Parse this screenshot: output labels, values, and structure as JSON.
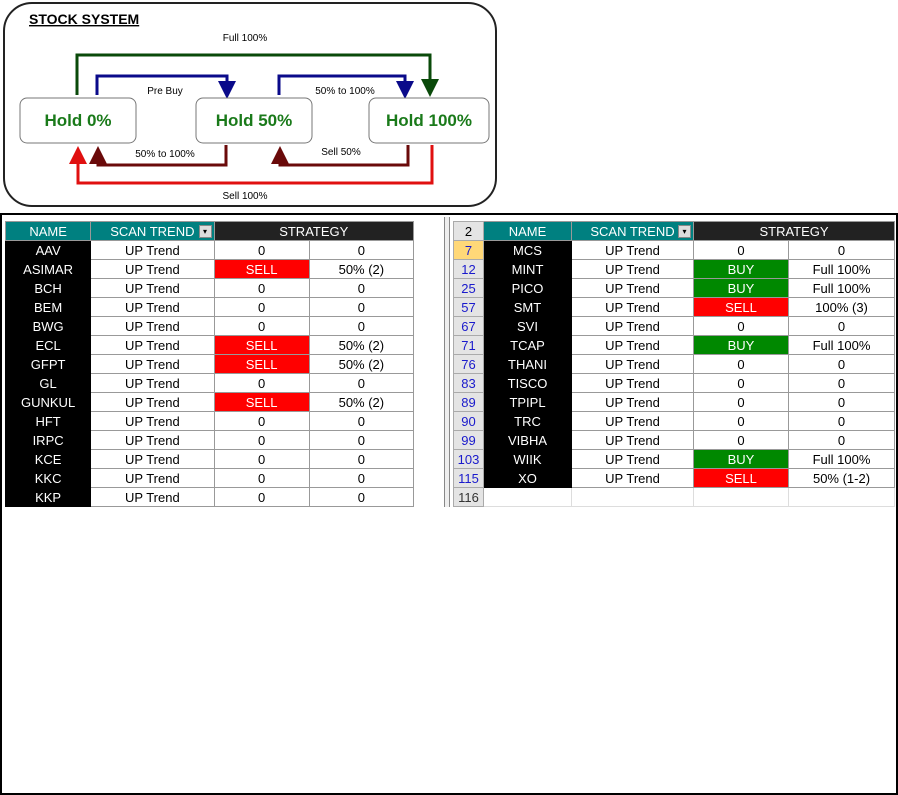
{
  "diagram": {
    "title": "STOCK SYSTEM",
    "states": [
      "Hold 0%",
      "Hold 50%",
      "Hold 100%"
    ],
    "arrows": {
      "full": "Full 100%",
      "pre_buy": "Pre Buy",
      "half_to_full": "50% to 100%",
      "back_to_zero": "50% to 100%",
      "sell_half": "Sell 50%",
      "sell_full": "Sell 100%"
    },
    "colors": {
      "green": "#0a4a0a",
      "blue": "#0a0a8a",
      "darkred": "#6a0a0a",
      "red": "#e01010",
      "state_text": "#1a7a1a"
    }
  },
  "left_table": {
    "headers": {
      "name": "NAME",
      "scan": "SCAN TREND",
      "strategy": "STRATEGY"
    },
    "rows": [
      {
        "name": "AAV",
        "trend": "UP Trend",
        "signal": "0",
        "detail": "0"
      },
      {
        "name": "ASIMAR",
        "trend": "UP Trend",
        "signal": "SELL",
        "detail": "50% (2)"
      },
      {
        "name": "BCH",
        "trend": "UP Trend",
        "signal": "0",
        "detail": "0"
      },
      {
        "name": "BEM",
        "trend": "UP Trend",
        "signal": "0",
        "detail": "0"
      },
      {
        "name": "BWG",
        "trend": "UP Trend",
        "signal": "0",
        "detail": "0"
      },
      {
        "name": "ECL",
        "trend": "UP Trend",
        "signal": "SELL",
        "detail": "50% (2)"
      },
      {
        "name": "GFPT",
        "trend": "UP Trend",
        "signal": "SELL",
        "detail": "50% (2)"
      },
      {
        "name": "GL",
        "trend": "UP Trend",
        "signal": "0",
        "detail": "0"
      },
      {
        "name": "GUNKUL",
        "trend": "UP Trend",
        "signal": "SELL",
        "detail": "50% (2)"
      },
      {
        "name": "HFT",
        "trend": "UP Trend",
        "signal": "0",
        "detail": "0"
      },
      {
        "name": "IRPC",
        "trend": "UP Trend",
        "signal": "0",
        "detail": "0"
      },
      {
        "name": "KCE",
        "trend": "UP Trend",
        "signal": "0",
        "detail": "0"
      },
      {
        "name": "KKC",
        "trend": "UP Trend",
        "signal": "0",
        "detail": "0"
      },
      {
        "name": "KKP",
        "trend": "UP Trend",
        "signal": "0",
        "detail": "0"
      }
    ]
  },
  "right_table": {
    "header_row": "2",
    "headers": {
      "name": "NAME",
      "scan": "SCAN TREND",
      "strategy": "STRATEGY"
    },
    "rows": [
      {
        "row": "7",
        "name": "MCS",
        "trend": "UP Trend",
        "signal": "0",
        "detail": "0"
      },
      {
        "row": "12",
        "name": "MINT",
        "trend": "UP Trend",
        "signal": "BUY",
        "detail": "Full 100%"
      },
      {
        "row": "25",
        "name": "PICO",
        "trend": "UP Trend",
        "signal": "BUY",
        "detail": "Full 100%"
      },
      {
        "row": "57",
        "name": "SMT",
        "trend": "UP Trend",
        "signal": "SELL",
        "detail": "100% (3)"
      },
      {
        "row": "67",
        "name": "SVI",
        "trend": "UP Trend",
        "signal": "0",
        "detail": "0"
      },
      {
        "row": "71",
        "name": "TCAP",
        "trend": "UP Trend",
        "signal": "BUY",
        "detail": "Full 100%"
      },
      {
        "row": "76",
        "name": "THANI",
        "trend": "UP Trend",
        "signal": "0",
        "detail": "0"
      },
      {
        "row": "83",
        "name": "TISCO",
        "trend": "UP Trend",
        "signal": "0",
        "detail": "0"
      },
      {
        "row": "89",
        "name": "TPIPL",
        "trend": "UP Trend",
        "signal": "0",
        "detail": "0"
      },
      {
        "row": "90",
        "name": "TRC",
        "trend": "UP Trend",
        "signal": "0",
        "detail": "0"
      },
      {
        "row": "99",
        "name": "VIBHA",
        "trend": "UP Trend",
        "signal": "0",
        "detail": "0"
      },
      {
        "row": "103",
        "name": "WIIK",
        "trend": "UP Trend",
        "signal": "BUY",
        "detail": "Full 100%"
      },
      {
        "row": "115",
        "name": "XO",
        "trend": "UP Trend",
        "signal": "SELL",
        "detail": "50% (1-2)"
      }
    ],
    "last_row": "116"
  }
}
